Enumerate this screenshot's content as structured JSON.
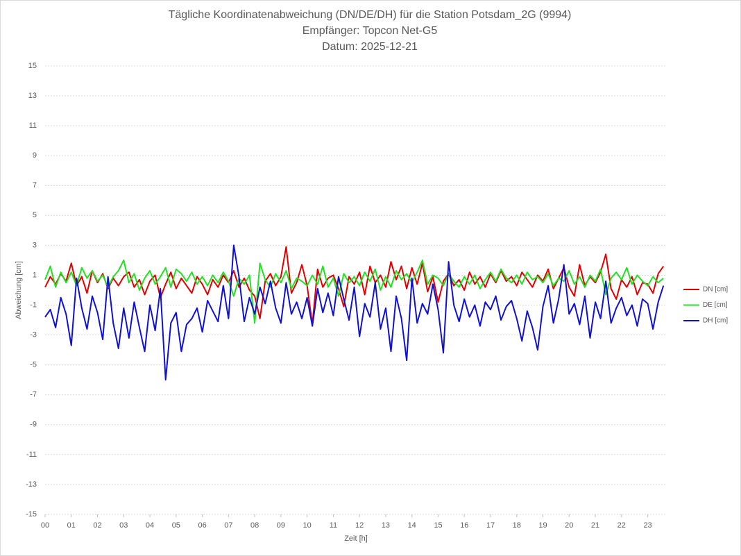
{
  "chart_data": {
    "type": "line",
    "title": "Tägliche Koordinatenabweichung (DN/DE/DH) für die Station Potsdam_2G (9994)",
    "subtitle": "Empfänger: Topcon Net-G5",
    "date_label": "Datum: 2025-12-21",
    "xlabel": "Zeit [h]",
    "ylabel": "Abweichung [cm]",
    "x": [
      0,
      0.2,
      0.4,
      0.6,
      0.8,
      1,
      1.2,
      1.4,
      1.6,
      1.8,
      2,
      2.2,
      2.4,
      2.6,
      2.8,
      3,
      3.2,
      3.4,
      3.6,
      3.8,
      4,
      4.2,
      4.4,
      4.6,
      4.8,
      5,
      5.2,
      5.4,
      5.6,
      5.8,
      6,
      6.2,
      6.4,
      6.6,
      6.8,
      7,
      7.2,
      7.4,
      7.6,
      7.8,
      8,
      8.2,
      8.4,
      8.6,
      8.8,
      9,
      9.2,
      9.4,
      9.6,
      9.8,
      10,
      10.2,
      10.4,
      10.6,
      10.8,
      11,
      11.2,
      11.4,
      11.6,
      11.8,
      12,
      12.2,
      12.4,
      12.6,
      12.8,
      13,
      13.2,
      13.4,
      13.6,
      13.8,
      14,
      14.2,
      14.4,
      14.6,
      14.8,
      15,
      15.2,
      15.4,
      15.6,
      15.8,
      16,
      16.2,
      16.4,
      16.6,
      16.8,
      17,
      17.2,
      17.4,
      17.6,
      17.8,
      18,
      18.2,
      18.4,
      18.6,
      18.8,
      19,
      19.2,
      19.4,
      19.6,
      19.8,
      20,
      20.2,
      20.4,
      20.6,
      20.8,
      21,
      21.2,
      21.4,
      21.6,
      21.8,
      22,
      22.2,
      22.4,
      22.6,
      22.8,
      23,
      23.2,
      23.4,
      23.6
    ],
    "series": [
      {
        "name": "DN [cm]",
        "color": "#e00000",
        "values": [
          0.2,
          0.9,
          0.4,
          1.1,
          0.6,
          1.8,
          0.3,
          0.9,
          -0.2,
          1.3,
          0.5,
          1.1,
          0.1,
          0.8,
          0.3,
          0.9,
          1.2,
          0.2,
          0.7,
          -0.3,
          0.6,
          1.0,
          -0.5,
          0.4,
          1.2,
          0.1,
          0.8,
          0.3,
          -0.2,
          0.9,
          0.4,
          -0.3,
          0.7,
          0.2,
          1.0,
          0.5,
          1.3,
          0.2,
          0.8,
          0.0,
          -0.4,
          -1.9,
          0.6,
          1.1,
          0.3,
          0.9,
          2.9,
          -0.2,
          0.5,
          1.7,
          0.3,
          -2.3,
          1.4,
          0.2,
          0.8,
          1.0,
          0.1,
          -1.1,
          0.9,
          0.4,
          1.2,
          -0.3,
          1.6,
          0.5,
          1.0,
          0.2,
          1.9,
          0.7,
          1.6,
          0.1,
          1.5,
          0.4,
          1.8,
          -0.1,
          0.9,
          -0.8,
          0.6,
          1.1,
          0.3,
          0.7,
          0.0,
          1.2,
          0.4,
          0.9,
          0.2,
          1.1,
          0.5,
          1.3,
          0.6,
          0.9,
          0.3,
          1.2,
          0.7,
          0.2,
          1.0,
          0.6,
          1.4,
          0.1,
          0.8,
          1.5,
          0.2,
          -0.4,
          1.7,
          0.3,
          0.9,
          0.5,
          1.2,
          2.4,
          0.1,
          -0.6,
          0.7,
          0.2,
          0.9,
          -0.3,
          0.5,
          0.4,
          -0.2,
          1.1,
          1.6
        ]
      },
      {
        "name": "DE [cm]",
        "color": "#22e022",
        "values": [
          0.7,
          1.6,
          0.2,
          1.2,
          0.5,
          1.2,
          0.3,
          1.5,
          0.8,
          1.3,
          0.6,
          1.0,
          0.2,
          0.9,
          1.3,
          2.0,
          0.5,
          1.1,
          0.0,
          0.8,
          1.3,
          0.4,
          0.9,
          1.5,
          0.2,
          1.4,
          1.1,
          0.6,
          1.2,
          0.4,
          0.9,
          0.3,
          1.0,
          0.5,
          1.2,
          0.6,
          -0.4,
          0.8,
          0.4,
          1.0,
          -2.2,
          1.8,
          0.7,
          0.2,
          1.1,
          0.5,
          1.3,
          0.1,
          0.8,
          0.6,
          0.3,
          1.0,
          0.4,
          1.6,
          0.2,
          0.8,
          -0.4,
          1.1,
          0.5,
          0.9,
          0.3,
          1.2,
          0.6,
          1.4,
          0.0,
          0.9,
          0.2,
          1.3,
          0.7,
          1.1,
          0.5,
          1.2,
          2.0,
          0.4,
          1.0,
          0.8,
          0.3,
          1.1,
          0.6,
          0.2,
          0.9,
          0.4,
          1.0,
          0.1,
          0.7,
          1.2,
          0.6,
          1.4,
          0.8,
          0.5,
          1.0,
          0.4,
          1.2,
          0.7,
          0.9,
          0.5,
          1.1,
          0.3,
          0.8,
          0.6,
          1.3,
          0.4,
          0.9,
          0.2,
          1.0,
          0.6,
          1.4,
          -0.3,
          0.8,
          1.2,
          0.7,
          1.5,
          0.4,
          1.0,
          0.6,
          0.3,
          0.9,
          0.5,
          0.8
        ]
      },
      {
        "name": "DH [cm]",
        "color": "#1010d0",
        "values": [
          -1.8,
          -1.3,
          -2.5,
          -0.5,
          -1.6,
          -3.7,
          0.8,
          -1.2,
          -2.6,
          -0.4,
          -1.5,
          -3.3,
          0.9,
          -2.2,
          -3.9,
          -1.2,
          -3.2,
          -0.8,
          -2.5,
          -4.1,
          -1.0,
          -2.7,
          0.1,
          -6.0,
          -2.2,
          -1.5,
          -4.1,
          -2.3,
          -1.9,
          -1.2,
          -2.8,
          -0.7,
          -1.4,
          -2.1,
          0.3,
          -1.9,
          3.0,
          0.9,
          -2.1,
          -0.5,
          -1.6,
          0.2,
          -0.9,
          0.6,
          -1.2,
          -2.2,
          0.5,
          -1.6,
          -0.8,
          -1.9,
          -0.5,
          -2.4,
          0.1,
          -1.5,
          -0.2,
          -1.7,
          0.9,
          -0.6,
          -2.0,
          0.2,
          -3.1,
          -0.9,
          -1.8,
          0.5,
          -2.6,
          -1.2,
          -4.1,
          -0.4,
          -1.9,
          -4.7,
          0.8,
          -2.2,
          -0.9,
          -1.6,
          0.4,
          -1.3,
          -4.2,
          1.9,
          -1.0,
          -2.1,
          -0.6,
          -1.8,
          -1.0,
          -2.4,
          -0.8,
          -1.3,
          -0.4,
          -2.0,
          -1.1,
          -0.7,
          -1.9,
          -3.4,
          -1.4,
          -2.5,
          -4.0,
          -1.1,
          0.3,
          -2.2,
          -0.6,
          1.7,
          -1.6,
          -0.9,
          -2.3,
          -0.4,
          -3.2,
          -0.8,
          -1.9,
          0.6,
          -2.2,
          -1.2,
          -0.5,
          -1.7,
          -1.0,
          -2.4,
          -0.6,
          -0.9,
          -2.6,
          -0.8,
          0.3
        ]
      }
    ],
    "xlim": [
      0,
      23.7
    ],
    "xticks": [
      {
        "value": 0,
        "label": "00"
      },
      {
        "value": 1,
        "label": "01"
      },
      {
        "value": 2,
        "label": "02"
      },
      {
        "value": 3,
        "label": "03"
      },
      {
        "value": 4,
        "label": "04"
      },
      {
        "value": 5,
        "label": "05"
      },
      {
        "value": 6,
        "label": "06"
      },
      {
        "value": 7,
        "label": "07"
      },
      {
        "value": 8,
        "label": "08"
      },
      {
        "value": 9,
        "label": "09"
      },
      {
        "value": 10,
        "label": "10"
      },
      {
        "value": 11,
        "label": "11"
      },
      {
        "value": 12,
        "label": "12"
      },
      {
        "value": 13,
        "label": "13"
      },
      {
        "value": 14,
        "label": "14"
      },
      {
        "value": 15,
        "label": "15"
      },
      {
        "value": 16,
        "label": "16"
      },
      {
        "value": 17,
        "label": "17"
      },
      {
        "value": 18,
        "label": "18"
      },
      {
        "value": 19,
        "label": "19"
      },
      {
        "value": 20,
        "label": "20"
      },
      {
        "value": 21,
        "label": "21"
      },
      {
        "value": 22,
        "label": "22"
      },
      {
        "value": 23,
        "label": "23"
      }
    ],
    "ylim": [
      -15,
      15
    ],
    "yticks": [
      -15,
      -13,
      -11,
      -9,
      -7,
      -5,
      -3,
      -1,
      1,
      3,
      5,
      7,
      9,
      11,
      13,
      15
    ],
    "grid": true,
    "legend": "right"
  }
}
